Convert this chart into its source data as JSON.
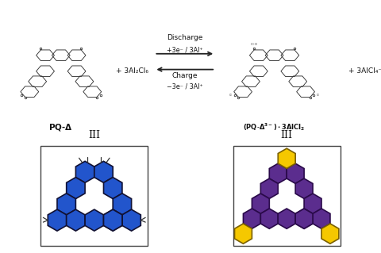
{
  "bg_color": "#ffffff",
  "hex_edge_color": "#1a1a1a",
  "blue_fill": "#2255cc",
  "blue_edge": "#111133",
  "purple_fill": "#5b2d8e",
  "purple_edge": "#2a0a4a",
  "yellow_fill": "#f5c800",
  "yellow_edge": "#7a6000",
  "box_edge": "#444444",
  "mol_color": "#333333",
  "arrow_color": "#222222",
  "text_color": "#111111",
  "discharge_label": "Discharge",
  "charge_label": "Charge",
  "discharge_eq": "+3e⁻ / 3Al⁺",
  "charge_eq": "−3e⁻ / 3Al⁺",
  "plus_left": "+ 3Al₂Cl₆",
  "plus_right": "+ 3AlCl₄⁻",
  "left_name": "PQ-Δ",
  "right_name": "(PQ-Δ3⁻)·3AlCl₂",
  "roman": "III",
  "r_hex": 0.62,
  "r_hex_right": 0.58
}
